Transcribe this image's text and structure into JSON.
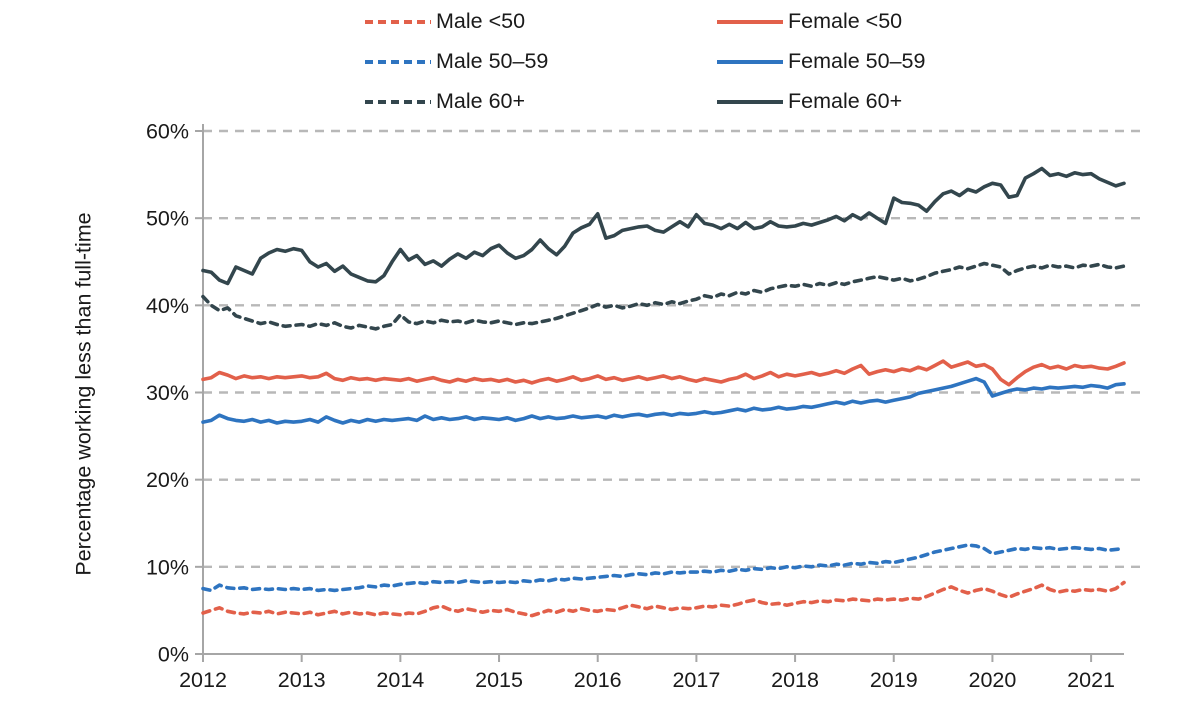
{
  "figure": {
    "kind": "line-chart",
    "background": "#ffffff",
    "text_color": "#1a1a1a",
    "axis_color": "#a6a6a6",
    "grid_color": "#b8b8b8"
  },
  "chart_data": {
    "type": "line",
    "title": "",
    "xlabel": "",
    "ylabel": "Percentage working less than full-time",
    "ylim": [
      0,
      60
    ],
    "y_ticks": [
      0,
      10,
      20,
      30,
      40,
      50,
      60
    ],
    "y_tick_suffix": "%",
    "x_tick_labels": [
      "2012",
      "2013",
      "2014",
      "2015",
      "2016",
      "2017",
      "2018",
      "2019",
      "2020",
      "2021"
    ],
    "x_unit": "month",
    "x_start": "2012-01",
    "x_end": "2021-05",
    "grid": "horizontal-dashed",
    "legend_position": "top-two-columns",
    "series": [
      {
        "name": "Male <50",
        "color": "#e2604a",
        "dash": true,
        "values": [
          4.7,
          5.0,
          5.3,
          4.9,
          4.7,
          4.6,
          4.8,
          4.7,
          4.9,
          4.6,
          4.8,
          4.7,
          4.6,
          4.8,
          4.5,
          4.7,
          4.9,
          4.6,
          4.8,
          4.6,
          4.7,
          4.5,
          4.7,
          4.6,
          4.5,
          4.7,
          4.6,
          4.9,
          5.3,
          5.5,
          5.1,
          4.9,
          5.2,
          5.0,
          4.8,
          5.0,
          4.9,
          5.1,
          4.8,
          4.6,
          4.4,
          4.7,
          5.0,
          4.8,
          5.1,
          4.9,
          5.2,
          5.0,
          4.9,
          5.1,
          5.0,
          5.3,
          5.6,
          5.4,
          5.2,
          5.5,
          5.3,
          5.1,
          5.3,
          5.2,
          5.3,
          5.5,
          5.4,
          5.6,
          5.5,
          5.7,
          6.0,
          6.2,
          5.9,
          5.7,
          5.8,
          5.6,
          5.8,
          6.0,
          5.9,
          6.1,
          6.0,
          6.2,
          6.1,
          6.3,
          6.2,
          6.1,
          6.3,
          6.2,
          6.3,
          6.2,
          6.4,
          6.3,
          6.6,
          7.0,
          7.4,
          7.7,
          7.3,
          7.0,
          7.3,
          7.5,
          7.2,
          6.8,
          6.5,
          6.9,
          7.2,
          7.5,
          7.9,
          7.4,
          7.1,
          7.3,
          7.2,
          7.4,
          7.3,
          7.4,
          7.2,
          7.5,
          8.2
        ]
      },
      {
        "name": "Female <50",
        "color": "#e2604a",
        "dash": false,
        "values": [
          31.5,
          31.7,
          32.3,
          32.0,
          31.6,
          31.9,
          31.7,
          31.8,
          31.6,
          31.8,
          31.7,
          31.8,
          31.9,
          31.7,
          31.8,
          32.2,
          31.6,
          31.4,
          31.7,
          31.5,
          31.6,
          31.4,
          31.6,
          31.5,
          31.4,
          31.6,
          31.3,
          31.5,
          31.7,
          31.4,
          31.2,
          31.5,
          31.3,
          31.6,
          31.4,
          31.5,
          31.3,
          31.5,
          31.2,
          31.4,
          31.1,
          31.4,
          31.6,
          31.3,
          31.5,
          31.8,
          31.4,
          31.6,
          31.9,
          31.5,
          31.7,
          31.4,
          31.6,
          31.8,
          31.5,
          31.7,
          31.9,
          31.6,
          31.8,
          31.5,
          31.3,
          31.6,
          31.4,
          31.2,
          31.5,
          31.7,
          32.1,
          31.6,
          31.9,
          32.3,
          31.8,
          32.1,
          31.9,
          32.1,
          32.3,
          32.0,
          32.2,
          32.5,
          32.2,
          32.7,
          33.1,
          32.1,
          32.4,
          32.6,
          32.4,
          32.7,
          32.5,
          32.9,
          32.6,
          33.1,
          33.6,
          32.9,
          33.2,
          33.5,
          33.0,
          33.2,
          32.7,
          31.5,
          30.9,
          31.7,
          32.4,
          32.9,
          33.2,
          32.8,
          33.0,
          32.7,
          33.1,
          32.9,
          33.0,
          32.8,
          32.7,
          33.0,
          33.4
        ]
      },
      {
        "name": "Male 50–59",
        "color": "#2e74c0",
        "dash": true,
        "values": [
          7.5,
          7.3,
          7.9,
          7.6,
          7.5,
          7.6,
          7.4,
          7.5,
          7.4,
          7.5,
          7.4,
          7.5,
          7.4,
          7.5,
          7.3,
          7.4,
          7.3,
          7.4,
          7.5,
          7.6,
          7.8,
          7.7,
          7.9,
          7.8,
          8.0,
          8.1,
          8.2,
          8.1,
          8.3,
          8.2,
          8.3,
          8.2,
          8.4,
          8.3,
          8.2,
          8.3,
          8.2,
          8.3,
          8.2,
          8.4,
          8.3,
          8.5,
          8.4,
          8.6,
          8.5,
          8.7,
          8.6,
          8.7,
          8.8,
          8.9,
          9.0,
          8.9,
          9.1,
          9.2,
          9.1,
          9.3,
          9.2,
          9.4,
          9.3,
          9.4,
          9.4,
          9.5,
          9.4,
          9.6,
          9.5,
          9.7,
          9.6,
          9.8,
          9.7,
          9.9,
          9.8,
          10.0,
          9.9,
          10.1,
          10.0,
          10.2,
          10.1,
          10.3,
          10.2,
          10.4,
          10.3,
          10.5,
          10.4,
          10.6,
          10.5,
          10.7,
          10.9,
          11.1,
          11.4,
          11.7,
          11.9,
          12.1,
          12.3,
          12.5,
          12.4,
          12.1,
          11.5,
          11.7,
          11.9,
          12.1,
          12.0,
          12.2,
          12.1,
          12.2,
          12.0,
          12.1,
          12.2,
          12.1,
          12.0,
          12.1,
          11.9,
          12.0,
          12.1
        ]
      },
      {
        "name": "Female 50–59",
        "color": "#2e74c0",
        "dash": false,
        "values": [
          26.6,
          26.8,
          27.4,
          27.0,
          26.8,
          26.7,
          26.9,
          26.6,
          26.8,
          26.5,
          26.7,
          26.6,
          26.7,
          26.9,
          26.6,
          27.2,
          26.8,
          26.5,
          26.8,
          26.6,
          26.9,
          26.7,
          26.9,
          26.8,
          26.9,
          27.0,
          26.8,
          27.3,
          26.9,
          27.1,
          26.9,
          27.0,
          27.2,
          26.9,
          27.1,
          27.0,
          26.9,
          27.1,
          26.8,
          27.0,
          27.3,
          27.0,
          27.2,
          27.0,
          27.1,
          27.3,
          27.1,
          27.2,
          27.3,
          27.1,
          27.4,
          27.2,
          27.4,
          27.5,
          27.3,
          27.5,
          27.6,
          27.4,
          27.6,
          27.5,
          27.6,
          27.8,
          27.6,
          27.7,
          27.9,
          28.1,
          27.9,
          28.2,
          28.0,
          28.1,
          28.3,
          28.1,
          28.2,
          28.4,
          28.3,
          28.5,
          28.7,
          28.9,
          28.7,
          29.0,
          28.8,
          29.0,
          29.1,
          28.9,
          29.1,
          29.3,
          29.5,
          29.9,
          30.1,
          30.3,
          30.5,
          30.7,
          31.0,
          31.3,
          31.6,
          31.2,
          29.6,
          29.9,
          30.2,
          30.4,
          30.3,
          30.5,
          30.4,
          30.6,
          30.5,
          30.6,
          30.7,
          30.6,
          30.8,
          30.7,
          30.5,
          30.9,
          31.0
        ]
      },
      {
        "name": "Male 60+",
        "color": "#33464d",
        "dash": true,
        "values": [
          41.0,
          40.0,
          39.4,
          39.7,
          38.8,
          38.5,
          38.2,
          37.9,
          38.1,
          37.8,
          37.6,
          37.7,
          37.8,
          37.6,
          37.9,
          37.7,
          38.0,
          37.6,
          37.4,
          37.7,
          37.5,
          37.3,
          37.6,
          37.8,
          38.9,
          38.1,
          37.9,
          38.2,
          38.0,
          38.3,
          38.1,
          38.2,
          38.0,
          38.3,
          38.1,
          38.0,
          38.2,
          38.0,
          37.8,
          38.0,
          37.9,
          38.1,
          38.3,
          38.5,
          38.8,
          39.1,
          39.4,
          39.7,
          40.1,
          39.8,
          40.0,
          39.7,
          39.9,
          40.2,
          40.0,
          40.3,
          40.1,
          40.4,
          40.2,
          40.5,
          40.7,
          41.1,
          40.9,
          41.3,
          41.1,
          41.5,
          41.3,
          41.7,
          41.5,
          41.9,
          42.1,
          42.3,
          42.2,
          42.4,
          42.2,
          42.5,
          42.3,
          42.6,
          42.4,
          42.7,
          42.9,
          43.1,
          43.3,
          43.1,
          42.9,
          43.1,
          42.8,
          43.0,
          43.3,
          43.7,
          43.9,
          44.1,
          44.4,
          44.2,
          44.5,
          44.8,
          44.6,
          44.4,
          43.6,
          44.0,
          44.3,
          44.5,
          44.3,
          44.6,
          44.4,
          44.5,
          44.3,
          44.6,
          44.5,
          44.7,
          44.4,
          44.3,
          44.5
        ]
      },
      {
        "name": "Female 60+",
        "color": "#33464d",
        "dash": false,
        "values": [
          44.0,
          43.8,
          42.9,
          42.5,
          44.4,
          44.0,
          43.6,
          45.4,
          46.0,
          46.4,
          46.2,
          46.5,
          46.3,
          45.0,
          44.4,
          44.8,
          43.9,
          44.5,
          43.6,
          43.2,
          42.8,
          42.7,
          43.4,
          45.0,
          46.4,
          45.2,
          45.7,
          44.7,
          45.1,
          44.5,
          45.3,
          45.9,
          45.4,
          46.1,
          45.7,
          46.5,
          46.9,
          46.0,
          45.4,
          45.7,
          46.4,
          47.5,
          46.5,
          45.8,
          46.8,
          48.3,
          48.9,
          49.3,
          50.5,
          47.7,
          48.0,
          48.6,
          48.8,
          49.0,
          49.1,
          48.6,
          48.4,
          49.0,
          49.6,
          49.0,
          50.4,
          49.4,
          49.2,
          48.8,
          49.3,
          48.8,
          49.5,
          48.8,
          49.0,
          49.6,
          49.1,
          49.0,
          49.1,
          49.4,
          49.2,
          49.5,
          49.8,
          50.2,
          49.7,
          50.4,
          49.9,
          50.6,
          50.0,
          49.4,
          52.3,
          51.8,
          51.7,
          51.5,
          50.8,
          51.9,
          52.8,
          53.1,
          52.6,
          53.3,
          53.0,
          53.6,
          54.0,
          53.8,
          52.4,
          52.6,
          54.6,
          55.1,
          55.7,
          54.9,
          55.1,
          54.8,
          55.2,
          55.0,
          55.1,
          54.5,
          54.1,
          53.7,
          54.0
        ]
      }
    ]
  }
}
